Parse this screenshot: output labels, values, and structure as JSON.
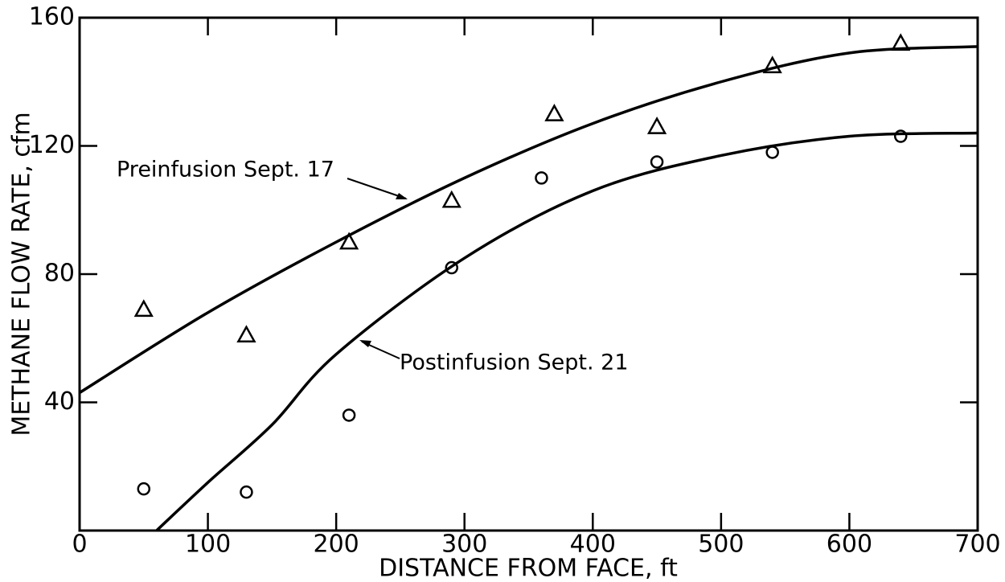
{
  "chart_data": {
    "type": "scatter",
    "xlabel": "DISTANCE FROM FACE, ft",
    "ylabel": "METHANE FLOW RATE, cfm",
    "xlim": [
      0,
      700
    ],
    "ylim": [
      0,
      160
    ],
    "xticks": [
      0,
      100,
      200,
      300,
      400,
      500,
      600,
      700
    ],
    "yticks": [
      40,
      80,
      120,
      160
    ],
    "color": "#000000",
    "series": [
      {
        "name": "Preinfusion Sept. 17",
        "marker": "triangle",
        "x": [
          50,
          130,
          210,
          290,
          370,
          450,
          540,
          640
        ],
        "values": [
          69,
          61,
          90,
          103,
          130,
          126,
          145,
          152
        ],
        "fit_x": [
          0,
          100,
          200,
          300,
          400,
          500,
          600,
          700
        ],
        "fit_values": [
          43,
          68,
          90,
          110,
          127,
          140,
          149,
          151
        ]
      },
      {
        "name": "Postinfusion Sept. 21",
        "marker": "circle",
        "x": [
          50,
          130,
          210,
          290,
          360,
          450,
          540,
          640
        ],
        "values": [
          13,
          12,
          36,
          82,
          110,
          115,
          118,
          123
        ],
        "fit_x": [
          60,
          100,
          150,
          200,
          300,
          400,
          500,
          600,
          700
        ],
        "fit_values": [
          0,
          15,
          33,
          55,
          85,
          106,
          117,
          123,
          124
        ]
      }
    ]
  }
}
